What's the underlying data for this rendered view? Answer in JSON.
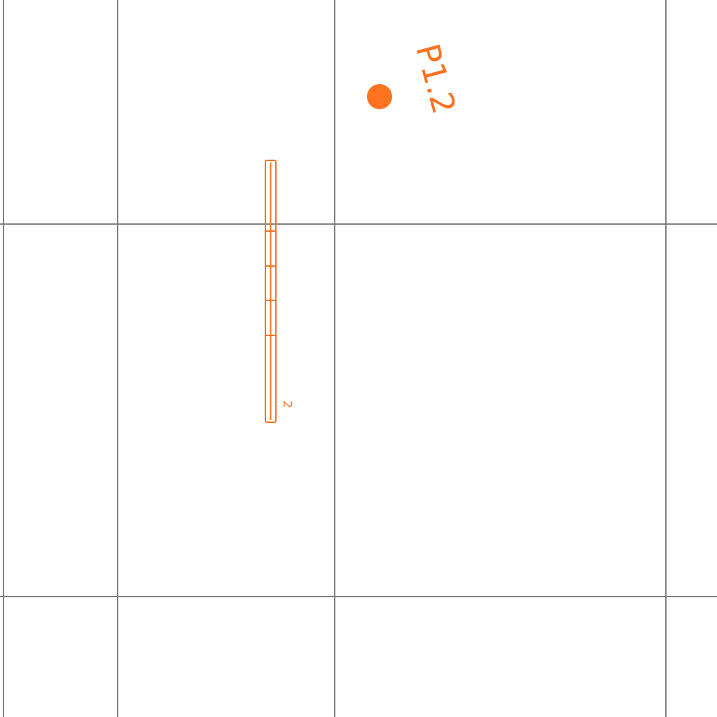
{
  "colors": {
    "background": "#ffffff",
    "grid": "#808080",
    "accent": "#ff7220"
  },
  "point_marker": {
    "label": "P1.2"
  },
  "element": {
    "name": "stacked-bar-element",
    "segments": 5,
    "label": "2"
  }
}
